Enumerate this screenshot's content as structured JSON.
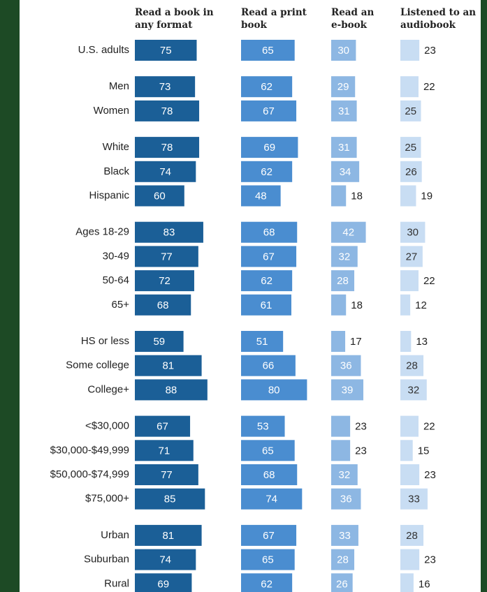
{
  "chart_data": {
    "type": "bar",
    "categories": [
      "U.S. adults",
      "Men",
      "Women",
      "White",
      "Black",
      "Hispanic",
      "Ages 18-29",
      "30-49",
      "50-64",
      "65+",
      "HS or less",
      "Some college",
      "College+",
      "<$30,000",
      "$30,000-$49,999",
      "$50,000-$74,999",
      "$75,000+",
      "Urban",
      "Suburban",
      "Rural"
    ],
    "series": [
      {
        "name": "Read a book in any format",
        "color": "#1b5f97",
        "values": [
          75,
          73,
          78,
          78,
          74,
          60,
          83,
          77,
          72,
          68,
          59,
          81,
          88,
          67,
          71,
          77,
          85,
          81,
          74,
          69
        ]
      },
      {
        "name": "Read a print book",
        "color": "#4a8dd0",
        "values": [
          65,
          62,
          67,
          69,
          62,
          48,
          68,
          67,
          62,
          61,
          51,
          66,
          80,
          53,
          65,
          68,
          74,
          67,
          65,
          62
        ]
      },
      {
        "name": "Read an e-book",
        "color": "#8db7e3",
        "values": [
          30,
          29,
          31,
          31,
          34,
          18,
          42,
          32,
          28,
          18,
          17,
          36,
          39,
          23,
          23,
          32,
          36,
          33,
          28,
          26
        ]
      },
      {
        "name": "Listened to an audiobook",
        "color": "#c8ddf3",
        "values": [
          23,
          22,
          25,
          25,
          26,
          19,
          30,
          27,
          22,
          12,
          13,
          28,
          32,
          22,
          15,
          23,
          33,
          28,
          23,
          16
        ]
      }
    ]
  }
}
